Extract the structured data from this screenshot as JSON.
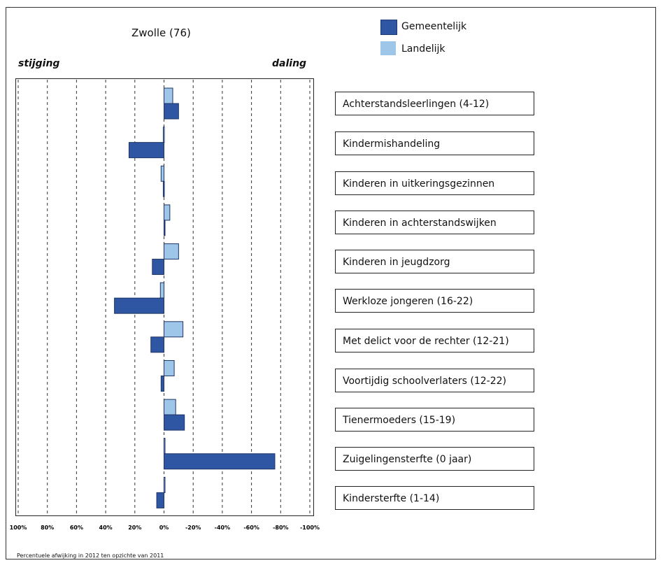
{
  "chart_data": {
    "type": "bar",
    "orientation": "horizontal",
    "title": "Zwolle (76)",
    "left_label": "stijging",
    "right_label": "daling",
    "footnote": "Percentuele afwijking in 2012 ten opzichte van 2011",
    "xlim": [
      100,
      -100
    ],
    "x_ticks": [
      100,
      80,
      60,
      40,
      20,
      0,
      -20,
      -40,
      -60,
      -80,
      -100
    ],
    "x_tick_labels": [
      "100%",
      "80%",
      "60%",
      "40%",
      "20%",
      "0%",
      "-20%",
      "-40%",
      "-60%",
      "-80%",
      "-100%"
    ],
    "grid": true,
    "legend_position": "top-right",
    "categories": [
      "Achterstandsleerlingen (4-12)",
      "Kindermishandeling",
      "Kinderen in uitkeringsgezinnen",
      "Kinderen in achterstandswijken",
      "Kinderen in jeugdzorg",
      "Werkloze jongeren (16-22)",
      "Met delict voor de rechter (12-21)",
      "Voortijdig schoolverlaters (12-22)",
      "Tienermoeders (15-19)",
      "Zuigelingensterfte (0 jaar)",
      "Kindersterfte (1-14)"
    ],
    "series": [
      {
        "name": "Gemeentelijk",
        "color": "#2f56a3",
        "values": [
          -10,
          24,
          0.5,
          -0.5,
          8,
          34,
          9,
          2,
          -14,
          -76,
          5
        ]
      },
      {
        "name": "Landelijk",
        "color": "#9ec6e8",
        "values": [
          -6,
          0.5,
          2,
          -4,
          -10,
          2.5,
          -13,
          -7,
          -8,
          -0.5,
          -0.5
        ]
      }
    ]
  }
}
